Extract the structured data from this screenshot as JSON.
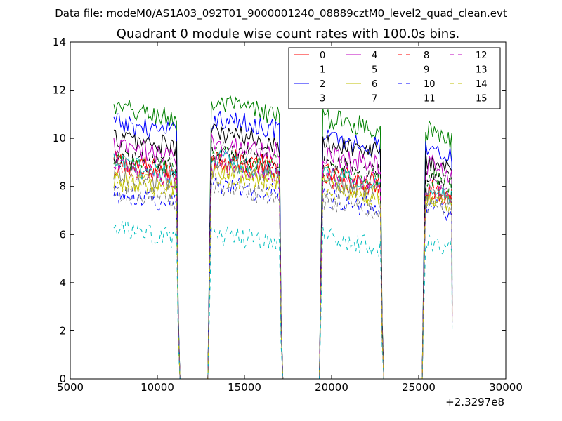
{
  "suptitle": "Data file: modeM0/AS1A03_092T01_9000001240_08889cztM0_level2_quad_clean.evt",
  "chart_data": {
    "type": "line",
    "title": "Quadrant 0 module wise count rates with 100.0s bins.",
    "xlabel": "",
    "ylabel": "",
    "x_offset_label": "+2.3297e8",
    "xlim": [
      5000,
      30000
    ],
    "ylim": [
      0,
      14
    ],
    "xticks": [
      5000,
      10000,
      15000,
      20000,
      25000,
      30000
    ],
    "xtick_labels": [
      "5000",
      "10000",
      "15000",
      "20000",
      "25000",
      "30000"
    ],
    "yticks": [
      0,
      2,
      4,
      6,
      8,
      10,
      12,
      14
    ],
    "ytick_labels": [
      "0",
      "2",
      "4",
      "6",
      "8",
      "10",
      "12",
      "14"
    ],
    "grid": false,
    "legend_position": "top-right",
    "legend_columns": 4,
    "bin_seconds": 100,
    "segments": [
      {
        "start": 7500,
        "end": 11100
      },
      {
        "start": 13100,
        "end": 17000
      },
      {
        "start": 19500,
        "end": 22800
      },
      {
        "start": 25400,
        "end": 26900
      }
    ],
    "gap_value": 0,
    "series": [
      {
        "name": "0",
        "color": "#ff0000",
        "dash": "solid",
        "levels": [
          8.6,
          8.8,
          8.1,
          7.5
        ]
      },
      {
        "name": "1",
        "color": "#008000",
        "dash": "solid",
        "levels": [
          10.8,
          11.0,
          10.4,
          9.9
        ]
      },
      {
        "name": "2",
        "color": "#0000ff",
        "dash": "solid",
        "levels": [
          10.2,
          10.4,
          9.6,
          9.3
        ]
      },
      {
        "name": "3",
        "color": "#000000",
        "dash": "solid",
        "levels": [
          9.6,
          9.8,
          9.4,
          8.7
        ]
      },
      {
        "name": "4",
        "color": "#bf00bf",
        "dash": "solid",
        "levels": [
          9.2,
          9.4,
          8.9,
          8.5
        ]
      },
      {
        "name": "5",
        "color": "#00bfbf",
        "dash": "solid",
        "levels": [
          8.5,
          8.7,
          8.0,
          7.6
        ]
      },
      {
        "name": "6",
        "color": "#bfbf00",
        "dash": "solid",
        "levels": [
          7.9,
          8.2,
          7.6,
          7.3
        ]
      },
      {
        "name": "7",
        "color": "#808080",
        "dash": "solid",
        "levels": [
          8.2,
          8.4,
          7.8,
          7.4
        ]
      },
      {
        "name": "8",
        "color": "#ff0000",
        "dash": "dashed",
        "levels": [
          8.3,
          8.6,
          7.9,
          7.6
        ]
      },
      {
        "name": "9",
        "color": "#008000",
        "dash": "dashed",
        "levels": [
          8.7,
          8.9,
          8.3,
          8.0
        ]
      },
      {
        "name": "10",
        "color": "#0000ff",
        "dash": "dashed",
        "levels": [
          7.3,
          7.7,
          7.1,
          6.8
        ]
      },
      {
        "name": "11",
        "color": "#000000",
        "dash": "dashed",
        "levels": [
          8.8,
          9.1,
          8.6,
          8.2
        ]
      },
      {
        "name": "12",
        "color": "#bf00bf",
        "dash": "dashed",
        "levels": [
          8.4,
          8.5,
          8.1,
          7.7
        ]
      },
      {
        "name": "13",
        "color": "#00bfbf",
        "dash": "dashed",
        "levels": [
          5.8,
          5.6,
          5.5,
          5.4
        ]
      },
      {
        "name": "14",
        "color": "#bfbf00",
        "dash": "dashed",
        "levels": [
          7.8,
          8.0,
          7.5,
          7.2
        ]
      },
      {
        "name": "15",
        "color": "#808080",
        "dash": "dashed",
        "levels": [
          7.4,
          7.6,
          7.0,
          6.9
        ]
      }
    ]
  }
}
